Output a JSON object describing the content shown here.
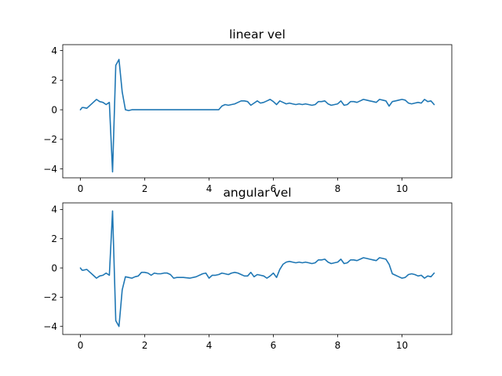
{
  "colors": {
    "series": "#1f77b4",
    "axes": "#000000",
    "background": "#ffffff"
  },
  "chart_data": [
    {
      "type": "line",
      "title": "linear vel",
      "xlabel": "",
      "ylabel": "",
      "xlim": [
        -0.55,
        11.55
      ],
      "ylim": [
        -4.6,
        4.4
      ],
      "xticks": [
        0,
        2,
        4,
        6,
        8,
        10
      ],
      "xtick_labels": [
        "0",
        "2",
        "4",
        "6",
        "8",
        "10"
      ],
      "yticks": [
        -4,
        -2,
        0,
        2,
        4
      ],
      "ytick_labels": [
        "−4",
        "−2",
        "0",
        "2",
        "4"
      ],
      "grid": false,
      "series": [
        {
          "x": [
            0.0,
            0.05,
            0.1,
            0.2,
            0.3,
            0.4,
            0.5,
            0.6,
            0.7,
            0.8,
            0.9,
            1.0,
            1.1,
            1.2,
            1.3,
            1.4,
            1.5,
            1.6,
            1.8,
            2.0,
            2.4,
            3.0,
            3.6,
            4.0,
            4.3,
            4.4,
            4.5,
            4.6,
            4.7,
            4.8,
            4.9,
            5.0,
            5.1,
            5.2,
            5.3,
            5.4,
            5.5,
            5.6,
            5.7,
            5.8,
            5.9,
            6.0,
            6.1,
            6.2,
            6.3,
            6.4,
            6.5,
            6.6,
            6.7,
            6.8,
            6.9,
            7.0,
            7.1,
            7.2,
            7.3,
            7.4,
            7.5,
            7.6,
            7.7,
            7.8,
            7.9,
            8.0,
            8.1,
            8.2,
            8.3,
            8.4,
            8.5,
            8.6,
            8.7,
            8.8,
            8.9,
            9.0,
            9.1,
            9.2,
            9.3,
            9.4,
            9.5,
            9.6,
            9.7,
            9.8,
            9.9,
            10.0,
            10.1,
            10.2,
            10.3,
            10.4,
            10.5,
            10.6,
            10.7,
            10.8,
            10.9,
            11.0
          ],
          "y": [
            0.0,
            0.15,
            0.15,
            0.1,
            0.3,
            0.5,
            0.7,
            0.55,
            0.5,
            0.35,
            0.5,
            -4.2,
            3.0,
            3.4,
            1.2,
            0.0,
            -0.05,
            0.0,
            0.0,
            0.0,
            0.0,
            0.0,
            0.0,
            0.0,
            0.0,
            0.25,
            0.35,
            0.3,
            0.35,
            0.4,
            0.5,
            0.6,
            0.6,
            0.55,
            0.3,
            0.45,
            0.6,
            0.45,
            0.5,
            0.6,
            0.7,
            0.55,
            0.35,
            0.6,
            0.5,
            0.4,
            0.45,
            0.4,
            0.35,
            0.4,
            0.35,
            0.4,
            0.35,
            0.3,
            0.35,
            0.55,
            0.55,
            0.6,
            0.4,
            0.3,
            0.35,
            0.4,
            0.6,
            0.3,
            0.35,
            0.55,
            0.55,
            0.5,
            0.6,
            0.7,
            0.65,
            0.6,
            0.55,
            0.5,
            0.7,
            0.65,
            0.6,
            0.25,
            0.55,
            0.6,
            0.65,
            0.7,
            0.65,
            0.45,
            0.4,
            0.45,
            0.5,
            0.45,
            0.7,
            0.55,
            0.6,
            0.35
          ]
        }
      ]
    },
    {
      "type": "line",
      "title": "angular vel",
      "xlabel": "",
      "ylabel": "",
      "xlim": [
        -0.55,
        11.55
      ],
      "ylim": [
        -4.55,
        4.45
      ],
      "xticks": [
        0,
        2,
        4,
        6,
        8,
        10
      ],
      "xtick_labels": [
        "0",
        "2",
        "4",
        "6",
        "8",
        "10"
      ],
      "yticks": [
        -4,
        -2,
        0,
        2,
        4
      ],
      "ytick_labels": [
        "−4",
        "−2",
        "0",
        "2",
        "4"
      ],
      "grid": false,
      "series": [
        {
          "x": [
            0.0,
            0.05,
            0.1,
            0.2,
            0.3,
            0.4,
            0.5,
            0.6,
            0.7,
            0.8,
            0.9,
            1.0,
            1.1,
            1.2,
            1.3,
            1.4,
            1.5,
            1.6,
            1.7,
            1.8,
            1.9,
            2.0,
            2.1,
            2.2,
            2.3,
            2.4,
            2.5,
            2.6,
            2.7,
            2.8,
            2.9,
            3.0,
            3.2,
            3.4,
            3.6,
            3.8,
            3.9,
            4.0,
            4.1,
            4.2,
            4.3,
            4.4,
            4.5,
            4.6,
            4.7,
            4.8,
            4.9,
            5.0,
            5.1,
            5.2,
            5.3,
            5.4,
            5.5,
            5.6,
            5.7,
            5.8,
            5.9,
            6.0,
            6.1,
            6.2,
            6.3,
            6.4,
            6.5,
            6.6,
            6.7,
            6.8,
            6.9,
            7.0,
            7.1,
            7.2,
            7.3,
            7.4,
            7.5,
            7.6,
            7.7,
            7.8,
            7.9,
            8.0,
            8.1,
            8.2,
            8.3,
            8.4,
            8.5,
            8.6,
            8.7,
            8.8,
            8.9,
            9.0,
            9.1,
            9.2,
            9.3,
            9.4,
            9.5,
            9.6,
            9.7,
            9.8,
            9.9,
            10.0,
            10.1,
            10.2,
            10.3,
            10.4,
            10.5,
            10.6,
            10.7,
            10.8,
            10.9,
            11.0
          ],
          "y": [
            0.0,
            -0.15,
            -0.15,
            -0.1,
            -0.3,
            -0.5,
            -0.7,
            -0.55,
            -0.5,
            -0.35,
            -0.5,
            3.9,
            -3.6,
            -4.0,
            -1.5,
            -0.6,
            -0.65,
            -0.7,
            -0.6,
            -0.55,
            -0.3,
            -0.3,
            -0.35,
            -0.5,
            -0.35,
            -0.4,
            -0.4,
            -0.35,
            -0.35,
            -0.45,
            -0.7,
            -0.65,
            -0.65,
            -0.7,
            -0.6,
            -0.4,
            -0.35,
            -0.7,
            -0.5,
            -0.5,
            -0.45,
            -0.35,
            -0.4,
            -0.45,
            -0.35,
            -0.3,
            -0.35,
            -0.45,
            -0.55,
            -0.55,
            -0.3,
            -0.6,
            -0.45,
            -0.5,
            -0.55,
            -0.7,
            -0.55,
            -0.35,
            -0.65,
            -0.1,
            0.25,
            0.4,
            0.45,
            0.4,
            0.35,
            0.4,
            0.35,
            0.4,
            0.35,
            0.3,
            0.35,
            0.55,
            0.55,
            0.6,
            0.4,
            0.3,
            0.35,
            0.4,
            0.6,
            0.3,
            0.35,
            0.55,
            0.55,
            0.5,
            0.6,
            0.7,
            0.65,
            0.6,
            0.55,
            0.5,
            0.7,
            0.65,
            0.6,
            0.25,
            -0.4,
            -0.5,
            -0.6,
            -0.7,
            -0.65,
            -0.45,
            -0.4,
            -0.45,
            -0.55,
            -0.5,
            -0.7,
            -0.55,
            -0.6,
            -0.35
          ]
        }
      ]
    }
  ]
}
